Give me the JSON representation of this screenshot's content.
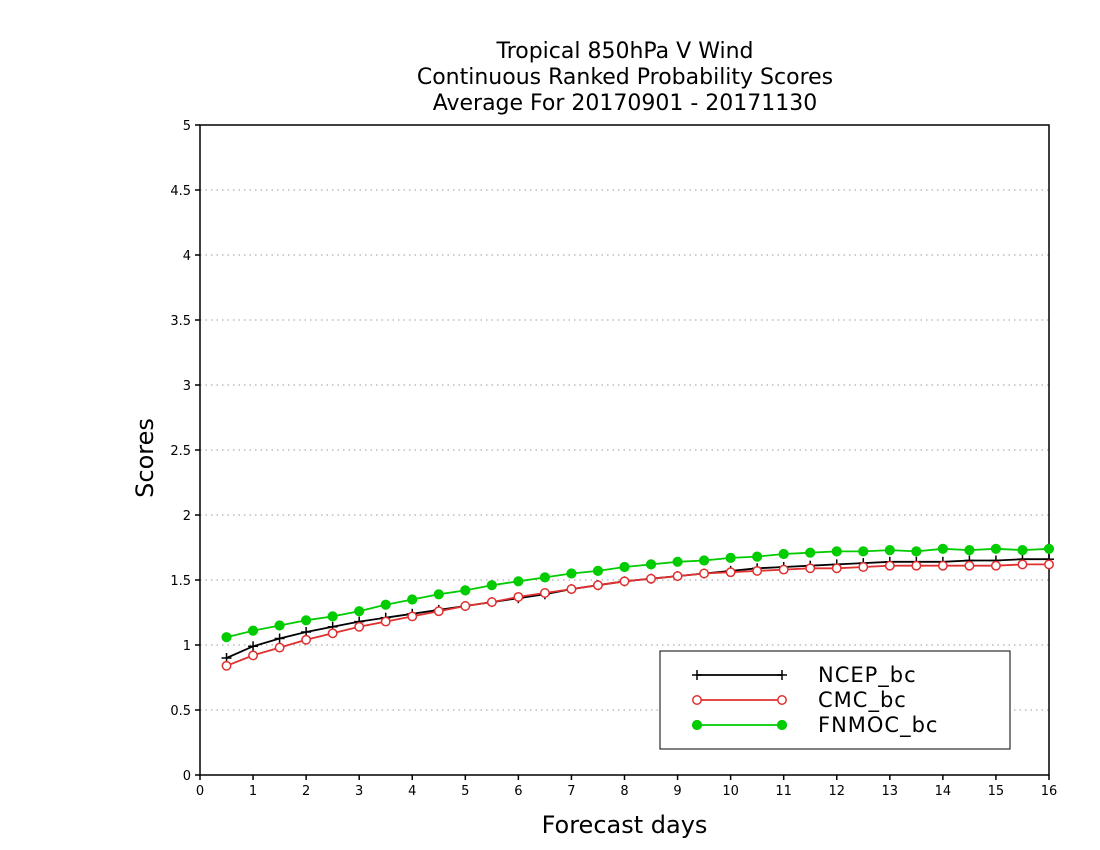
{
  "chart_data": {
    "type": "line",
    "title_lines": [
      "Tropical 850hPa V Wind",
      "Continuous Ranked Probability Scores",
      "Average For 20170901 - 20171130"
    ],
    "xlabel": "Forecast days",
    "ylabel": "Scores",
    "xlim": [
      0,
      16
    ],
    "ylim": [
      0,
      5
    ],
    "xticks": [
      "0",
      "1",
      "2",
      "3",
      "4",
      "5",
      "6",
      "7",
      "8",
      "9",
      "10",
      "11",
      "12",
      "13",
      "14",
      "15",
      "16"
    ],
    "yticks": [
      "0",
      "0.5",
      "1",
      "1.5",
      "2",
      "2.5",
      "3",
      "3.5",
      "4",
      "4.5",
      "5"
    ],
    "grid": true,
    "legend_position": "bottom-right",
    "x": [
      0.5,
      1,
      1.5,
      2,
      2.5,
      3,
      3.5,
      4,
      4.5,
      5,
      5.5,
      6,
      6.5,
      7,
      7.5,
      8,
      8.5,
      9,
      9.5,
      10,
      10.5,
      11,
      11.5,
      12,
      12.5,
      13,
      13.5,
      14,
      14.5,
      15,
      15.5,
      16
    ],
    "series": [
      {
        "name": "NCEP_bc",
        "color": "#000000",
        "marker": "plus",
        "values": [
          0.9,
          0.99,
          1.05,
          1.1,
          1.14,
          1.18,
          1.21,
          1.24,
          1.27,
          1.3,
          1.33,
          1.36,
          1.39,
          1.43,
          1.46,
          1.49,
          1.51,
          1.53,
          1.55,
          1.57,
          1.59,
          1.6,
          1.61,
          1.62,
          1.63,
          1.64,
          1.64,
          1.64,
          1.65,
          1.65,
          1.66,
          1.66
        ]
      },
      {
        "name": "CMC_bc",
        "color": "#e03030",
        "marker": "open-circle",
        "values": [
          0.84,
          0.92,
          0.98,
          1.04,
          1.09,
          1.14,
          1.18,
          1.22,
          1.26,
          1.3,
          1.33,
          1.37,
          1.4,
          1.43,
          1.46,
          1.49,
          1.51,
          1.53,
          1.55,
          1.56,
          1.57,
          1.58,
          1.59,
          1.59,
          1.6,
          1.61,
          1.61,
          1.61,
          1.61,
          1.61,
          1.62,
          1.62
        ]
      },
      {
        "name": "FNMOC_bc",
        "color": "#00cc00",
        "marker": "filled-circle",
        "values": [
          1.06,
          1.11,
          1.15,
          1.19,
          1.22,
          1.26,
          1.31,
          1.35,
          1.39,
          1.42,
          1.46,
          1.49,
          1.52,
          1.55,
          1.57,
          1.6,
          1.62,
          1.64,
          1.65,
          1.67,
          1.68,
          1.7,
          1.71,
          1.72,
          1.72,
          1.73,
          1.72,
          1.74,
          1.73,
          1.74,
          1.73,
          1.74
        ]
      }
    ]
  }
}
